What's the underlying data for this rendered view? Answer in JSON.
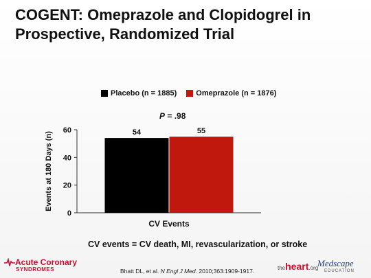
{
  "slide": {
    "title_line1": "COGENT: Omeprazole and Clopidogrel in",
    "title_line2": "Prospective, Randomized Trial"
  },
  "legend": {
    "placebo": "Placebo (n = 1885)",
    "omeprazole": "Omeprazole (n = 1876)"
  },
  "pvalue": {
    "symbol": "P",
    "rest": " = .98"
  },
  "footnote": "CV events = CV death, MI, revascularization, or stroke",
  "citation": {
    "authors": "Bhatt DL, et al. ",
    "journal": "N Engl J Med",
    "details": ". 2010;363:1909-1917."
  },
  "logos": {
    "acs_top": "Acute Coronary",
    "acs_bottom": "SYNDROMES",
    "heart": "heart",
    "heart_prefix": "the",
    "heart_suffix": ".org",
    "medscape": "Medscape",
    "medscape_sub": "EDUCATION"
  },
  "colors": {
    "placebo": "#000000",
    "omeprazole": "#c0180c"
  },
  "chart_data": {
    "type": "bar",
    "categories": [
      "CV Events"
    ],
    "series": [
      {
        "name": "Placebo (n = 1885)",
        "values": [
          54
        ]
      },
      {
        "name": "Omeprazole (n = 1876)",
        "values": [
          55
        ]
      }
    ],
    "xlabel": "CV Events",
    "ylabel": "Events at 180 Days (n)",
    "ylim": [
      0,
      60
    ],
    "yticks": [
      0,
      20,
      40,
      60
    ],
    "grid": false,
    "legend": "top"
  }
}
